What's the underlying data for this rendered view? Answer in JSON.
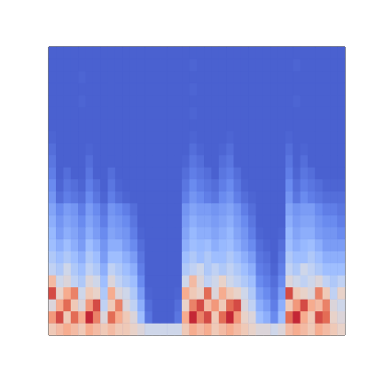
{
  "chart_data": {
    "type": "heatmap",
    "tick_labels": false,
    "zlim": [
      0,
      1
    ],
    "z": [
      [
        0.6,
        0.65,
        0.7,
        0.65,
        0.6,
        0.7,
        0.65,
        0.6,
        0.65,
        0.6,
        0.6,
        0.55,
        0.5,
        0.45,
        0.45,
        0.45,
        0.45,
        0.45,
        0.6,
        0.7,
        0.65,
        0.7,
        0.6,
        0.65,
        0.7,
        0.65,
        0.6,
        0.55,
        0.5,
        0.5,
        0.45,
        0.5,
        0.65,
        0.7,
        0.65,
        0.6,
        0.7,
        0.65,
        0.6,
        0.55
      ],
      [
        0.75,
        0.9,
        0.6,
        0.85,
        0.7,
        0.95,
        0.8,
        0.5,
        0.85,
        0.7,
        0.6,
        0.5,
        0.3,
        0.1,
        0.05,
        0.05,
        0.05,
        0.1,
        0.7,
        0.95,
        0.8,
        0.9,
        0.6,
        0.85,
        0.95,
        0.75,
        0.55,
        0.5,
        0.3,
        0.25,
        0.15,
        0.3,
        0.85,
        0.95,
        0.7,
        0.6,
        0.9,
        0.85,
        0.55,
        0.5
      ],
      [
        0.5,
        0.7,
        0.85,
        0.6,
        0.5,
        0.75,
        0.9,
        0.4,
        0.6,
        0.8,
        0.5,
        0.4,
        0.25,
        0.08,
        0.05,
        0.05,
        0.05,
        0.08,
        0.55,
        0.8,
        0.9,
        0.65,
        0.75,
        0.6,
        0.85,
        0.9,
        0.5,
        0.4,
        0.25,
        0.2,
        0.12,
        0.25,
        0.6,
        0.75,
        0.9,
        0.7,
        0.65,
        0.8,
        0.5,
        0.45
      ],
      [
        0.9,
        0.55,
        0.7,
        0.8,
        0.45,
        0.6,
        0.55,
        0.35,
        0.7,
        0.5,
        0.45,
        0.35,
        0.2,
        0.06,
        0.05,
        0.05,
        0.05,
        0.06,
        0.7,
        0.6,
        0.55,
        0.85,
        0.5,
        0.7,
        0.6,
        0.55,
        0.45,
        0.35,
        0.2,
        0.15,
        0.1,
        0.2,
        0.9,
        0.6,
        0.55,
        0.5,
        0.8,
        0.6,
        0.4,
        0.55
      ],
      [
        0.65,
        0.45,
        0.5,
        0.4,
        0.35,
        0.5,
        0.45,
        0.3,
        0.5,
        0.4,
        0.35,
        0.3,
        0.15,
        0.05,
        0.05,
        0.05,
        0.05,
        0.05,
        0.45,
        0.65,
        0.5,
        0.4,
        0.45,
        0.55,
        0.45,
        0.4,
        0.35,
        0.3,
        0.15,
        0.12,
        0.08,
        0.15,
        0.5,
        0.45,
        0.4,
        0.45,
        0.5,
        0.4,
        0.35,
        0.4
      ],
      [
        0.4,
        0.35,
        0.45,
        0.35,
        0.3,
        0.4,
        0.35,
        0.25,
        0.4,
        0.35,
        0.3,
        0.25,
        0.12,
        0.05,
        0.05,
        0.05,
        0.05,
        0.05,
        0.35,
        0.4,
        0.45,
        0.35,
        0.4,
        0.35,
        0.4,
        0.35,
        0.3,
        0.25,
        0.12,
        0.1,
        0.06,
        0.12,
        0.4,
        0.35,
        0.45,
        0.4,
        0.35,
        0.3,
        0.3,
        0.3
      ],
      [
        0.35,
        0.3,
        0.35,
        0.3,
        0.25,
        0.35,
        0.3,
        0.2,
        0.3,
        0.3,
        0.25,
        0.2,
        0.1,
        0.05,
        0.05,
        0.05,
        0.05,
        0.05,
        0.3,
        0.35,
        0.3,
        0.35,
        0.3,
        0.3,
        0.35,
        0.3,
        0.25,
        0.2,
        0.1,
        0.08,
        0.05,
        0.1,
        0.35,
        0.3,
        0.3,
        0.35,
        0.3,
        0.25,
        0.25,
        0.25
      ],
      [
        0.3,
        0.25,
        0.3,
        0.25,
        0.2,
        0.3,
        0.25,
        0.18,
        0.25,
        0.25,
        0.2,
        0.15,
        0.08,
        0.05,
        0.05,
        0.05,
        0.05,
        0.05,
        0.25,
        0.3,
        0.28,
        0.3,
        0.25,
        0.28,
        0.3,
        0.25,
        0.2,
        0.15,
        0.08,
        0.06,
        0.05,
        0.08,
        0.3,
        0.25,
        0.28,
        0.3,
        0.25,
        0.2,
        0.2,
        0.2
      ],
      [
        0.28,
        0.2,
        0.25,
        0.22,
        0.18,
        0.25,
        0.2,
        0.15,
        0.22,
        0.2,
        0.18,
        0.12,
        0.06,
        0.05,
        0.05,
        0.05,
        0.05,
        0.05,
        0.22,
        0.28,
        0.25,
        0.25,
        0.22,
        0.25,
        0.28,
        0.22,
        0.18,
        0.12,
        0.06,
        0.05,
        0.05,
        0.06,
        0.28,
        0.22,
        0.25,
        0.25,
        0.2,
        0.18,
        0.18,
        0.15
      ],
      [
        0.25,
        0.18,
        0.22,
        0.2,
        0.15,
        0.22,
        0.18,
        0.12,
        0.2,
        0.18,
        0.15,
        0.1,
        0.05,
        0.05,
        0.05,
        0.05,
        0.05,
        0.05,
        0.2,
        0.25,
        0.22,
        0.22,
        0.2,
        0.22,
        0.25,
        0.2,
        0.15,
        0.1,
        0.05,
        0.05,
        0.05,
        0.05,
        0.25,
        0.2,
        0.22,
        0.22,
        0.18,
        0.15,
        0.15,
        0.12
      ],
      [
        0.22,
        0.15,
        0.2,
        0.18,
        0.12,
        0.2,
        0.15,
        0.1,
        0.18,
        0.15,
        0.12,
        0.08,
        0.05,
        0.05,
        0.05,
        0.05,
        0.05,
        0.05,
        0.18,
        0.22,
        0.2,
        0.2,
        0.18,
        0.2,
        0.22,
        0.18,
        0.12,
        0.08,
        0.05,
        0.05,
        0.05,
        0.05,
        0.22,
        0.18,
        0.2,
        0.2,
        0.15,
        0.12,
        0.12,
        0.1
      ],
      [
        0.18,
        0.08,
        0.12,
        0.1,
        0.08,
        0.15,
        0.1,
        0.06,
        0.12,
        0.08,
        0.06,
        0.05,
        0.05,
        0.05,
        0.05,
        0.05,
        0.05,
        0.05,
        0.12,
        0.18,
        0.15,
        0.12,
        0.1,
        0.15,
        0.18,
        0.12,
        0.08,
        0.06,
        0.05,
        0.05,
        0.05,
        0.05,
        0.18,
        0.1,
        0.15,
        0.12,
        0.1,
        0.08,
        0.08,
        0.08
      ],
      [
        0.15,
        0.06,
        0.1,
        0.08,
        0.06,
        0.12,
        0.08,
        0.05,
        0.1,
        0.06,
        0.05,
        0.05,
        0.05,
        0.05,
        0.05,
        0.05,
        0.05,
        0.05,
        0.1,
        0.15,
        0.12,
        0.1,
        0.08,
        0.12,
        0.15,
        0.1,
        0.06,
        0.05,
        0.05,
        0.05,
        0.05,
        0.05,
        0.15,
        0.08,
        0.12,
        0.1,
        0.08,
        0.06,
        0.06,
        0.06
      ],
      [
        0.12,
        0.05,
        0.08,
        0.05,
        0.05,
        0.1,
        0.05,
        0.05,
        0.08,
        0.05,
        0.05,
        0.05,
        0.05,
        0.05,
        0.05,
        0.05,
        0.05,
        0.05,
        0.08,
        0.12,
        0.1,
        0.08,
        0.05,
        0.1,
        0.12,
        0.08,
        0.05,
        0.05,
        0.05,
        0.05,
        0.05,
        0.05,
        0.12,
        0.06,
        0.1,
        0.08,
        0.05,
        0.05,
        0.05,
        0.05
      ],
      [
        0.1,
        0.05,
        0.05,
        0.05,
        0.05,
        0.08,
        0.05,
        0.05,
        0.05,
        0.05,
        0.05,
        0.05,
        0.05,
        0.05,
        0.05,
        0.05,
        0.05,
        0.05,
        0.06,
        0.1,
        0.08,
        0.05,
        0.05,
        0.08,
        0.1,
        0.05,
        0.05,
        0.05,
        0.05,
        0.05,
        0.05,
        0.05,
        0.1,
        0.05,
        0.08,
        0.05,
        0.05,
        0.05,
        0.05,
        0.05
      ],
      [
        0.08,
        0.05,
        0.05,
        0.05,
        0.05,
        0.06,
        0.05,
        0.05,
        0.05,
        0.05,
        0.05,
        0.05,
        0.05,
        0.05,
        0.05,
        0.05,
        0.05,
        0.05,
        0.05,
        0.08,
        0.06,
        0.05,
        0.05,
        0.06,
        0.08,
        0.05,
        0.05,
        0.05,
        0.05,
        0.05,
        0.05,
        0.05,
        0.08,
        0.05,
        0.06,
        0.05,
        0.05,
        0.05,
        0.05,
        0.05
      ],
      [
        0.06,
        0.05,
        0.05,
        0.05,
        0.05,
        0.05,
        0.05,
        0.05,
        0.05,
        0.05,
        0.05,
        0.05,
        0.05,
        0.05,
        0.05,
        0.05,
        0.05,
        0.05,
        0.05,
        0.06,
        0.05,
        0.05,
        0.05,
        0.05,
        0.06,
        0.05,
        0.05,
        0.05,
        0.05,
        0.05,
        0.05,
        0.05,
        0.06,
        0.05,
        0.05,
        0.05,
        0.05,
        0.05,
        0.05,
        0.05
      ],
      [
        0.05,
        0.05,
        0.05,
        0.05,
        0.05,
        0.05,
        0.05,
        0.05,
        0.05,
        0.05,
        0.05,
        0.05,
        0.05,
        0.05,
        0.05,
        0.05,
        0.05,
        0.05,
        0.05,
        0.05,
        0.05,
        0.05,
        0.05,
        0.05,
        0.05,
        0.05,
        0.05,
        0.05,
        0.05,
        0.05,
        0.05,
        0.05,
        0.05,
        0.05,
        0.05,
        0.05,
        0.05,
        0.05,
        0.05,
        0.05
      ],
      [
        0.05,
        0.05,
        0.05,
        0.05,
        0.05,
        0.05,
        0.05,
        0.05,
        0.05,
        0.05,
        0.05,
        0.05,
        0.05,
        0.05,
        0.05,
        0.05,
        0.05,
        0.05,
        0.05,
        0.06,
        0.05,
        0.05,
        0.05,
        0.05,
        0.05,
        0.05,
        0.05,
        0.05,
        0.05,
        0.05,
        0.05,
        0.05,
        0.05,
        0.05,
        0.05,
        0.05,
        0.05,
        0.05,
        0.05,
        0.05
      ],
      [
        0.05,
        0.05,
        0.05,
        0.05,
        0.06,
        0.05,
        0.05,
        0.05,
        0.05,
        0.05,
        0.05,
        0.05,
        0.05,
        0.05,
        0.05,
        0.05,
        0.05,
        0.05,
        0.05,
        0.05,
        0.05,
        0.05,
        0.05,
        0.05,
        0.05,
        0.05,
        0.05,
        0.05,
        0.05,
        0.05,
        0.05,
        0.05,
        0.05,
        0.06,
        0.05,
        0.05,
        0.05,
        0.05,
        0.05,
        0.05
      ],
      [
        0.05,
        0.05,
        0.05,
        0.05,
        0.05,
        0.05,
        0.05,
        0.05,
        0.05,
        0.05,
        0.05,
        0.05,
        0.05,
        0.05,
        0.05,
        0.05,
        0.05,
        0.05,
        0.05,
        0.06,
        0.05,
        0.05,
        0.05,
        0.05,
        0.05,
        0.05,
        0.05,
        0.05,
        0.05,
        0.05,
        0.05,
        0.05,
        0.05,
        0.05,
        0.05,
        0.05,
        0.05,
        0.05,
        0.05,
        0.05
      ],
      [
        0.05,
        0.05,
        0.05,
        0.05,
        0.06,
        0.05,
        0.05,
        0.05,
        0.05,
        0.05,
        0.05,
        0.05,
        0.05,
        0.05,
        0.05,
        0.05,
        0.05,
        0.05,
        0.05,
        0.05,
        0.05,
        0.05,
        0.05,
        0.05,
        0.05,
        0.05,
        0.05,
        0.05,
        0.05,
        0.05,
        0.05,
        0.05,
        0.05,
        0.05,
        0.05,
        0.05,
        0.05,
        0.05,
        0.05,
        0.05
      ],
      [
        0.05,
        0.05,
        0.05,
        0.05,
        0.05,
        0.05,
        0.05,
        0.05,
        0.05,
        0.05,
        0.05,
        0.05,
        0.05,
        0.05,
        0.05,
        0.05,
        0.05,
        0.05,
        0.05,
        0.06,
        0.05,
        0.05,
        0.05,
        0.05,
        0.05,
        0.05,
        0.05,
        0.05,
        0.05,
        0.05,
        0.05,
        0.05,
        0.05,
        0.06,
        0.05,
        0.05,
        0.05,
        0.05,
        0.05,
        0.05
      ],
      [
        0.05,
        0.05,
        0.05,
        0.05,
        0.05,
        0.05,
        0.05,
        0.05,
        0.05,
        0.05,
        0.05,
        0.05,
        0.05,
        0.05,
        0.05,
        0.05,
        0.05,
        0.05,
        0.05,
        0.05,
        0.05,
        0.05,
        0.05,
        0.05,
        0.05,
        0.05,
        0.05,
        0.05,
        0.05,
        0.05,
        0.05,
        0.05,
        0.05,
        0.05,
        0.05,
        0.05,
        0.05,
        0.05,
        0.05,
        0.05
      ]
    ]
  }
}
